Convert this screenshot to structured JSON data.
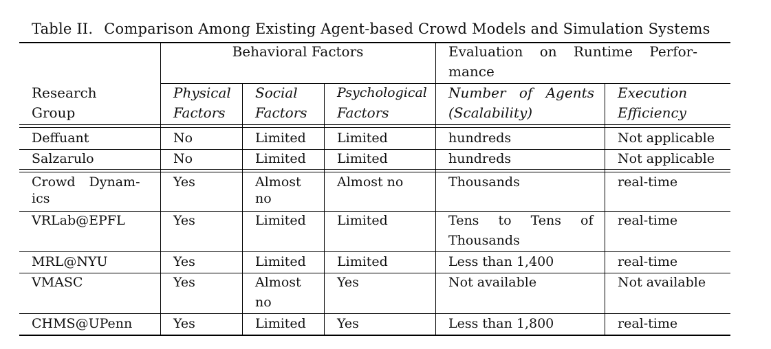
{
  "caption": {
    "label": "Table II.",
    "title": "Comparison Among Existing Agent-based Crowd Models and Simulation Systems"
  },
  "group_headers": {
    "behavioral": "Behavioral Factors",
    "evaluation_line1": [
      "Evaluation",
      "on",
      "Runtime",
      "Perfor-"
    ],
    "evaluation_line2": "mance"
  },
  "columns": {
    "research": [
      "Research",
      "Group"
    ],
    "physical": [
      "Physical",
      "Factors"
    ],
    "social": [
      "Social",
      "Factors"
    ],
    "psychological": [
      "Psychological",
      "Factors"
    ],
    "agents": [
      "Number",
      "of",
      "Agents",
      "(Scalability)"
    ],
    "execution": [
      "Execution",
      "Efficiency"
    ]
  },
  "rows": [
    {
      "group": [
        "Deffuant"
      ],
      "physical": "No",
      "social": [
        "Limited"
      ],
      "psychological": "Limited",
      "agents": [
        "hundreds"
      ],
      "execution": "Not applicable"
    },
    {
      "group": [
        "Salzarulo"
      ],
      "physical": "No",
      "social": [
        "Limited"
      ],
      "psychological": "Limited",
      "agents": [
        "hundreds"
      ],
      "execution": "Not applicable"
    },
    {
      "group": [
        "Crowd Dynam-",
        "ics"
      ],
      "physical": "Yes",
      "social": [
        "Almost",
        "no"
      ],
      "psychological": "Almost no",
      "agents": [
        "Thousands"
      ],
      "execution": "real-time"
    },
    {
      "group": [
        "VRLab@EPFL"
      ],
      "physical": "Yes",
      "social": [
        "Limited"
      ],
      "psychological": "Limited",
      "agents": [
        "Tens to Tens of",
        "Thousands"
      ],
      "execution": "real-time"
    },
    {
      "group": [
        "MRL@NYU"
      ],
      "physical": "Yes",
      "social": [
        "Limited"
      ],
      "psychological": "Limited",
      "agents": [
        "Less than 1,400"
      ],
      "execution": "real-time"
    },
    {
      "group": [
        "VMASC"
      ],
      "physical": "Yes",
      "social": [
        "Almost",
        "no"
      ],
      "psychological": "Yes",
      "agents": [
        "Not available"
      ],
      "execution": "Not available"
    },
    {
      "group": [
        "CHMS@UPenn"
      ],
      "physical": "Yes",
      "social": [
        "Limited"
      ],
      "psychological": "Yes",
      "agents": [
        "Less than 1,800"
      ],
      "execution": "real-time"
    }
  ]
}
